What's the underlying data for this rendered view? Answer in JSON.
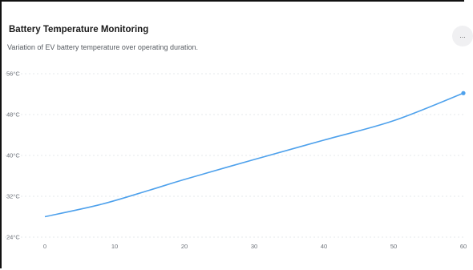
{
  "header": {
    "title": "Battery Temperature Monitoring",
    "subtitle": "Variation of EV battery temperature over operating duration.",
    "more_label": "..."
  },
  "chart_data": {
    "type": "line",
    "title": "Battery Temperature Monitoring",
    "subtitle": "Variation of EV battery temperature over operating duration.",
    "xlabel": "",
    "ylabel": "",
    "xlim": [
      0,
      60
    ],
    "ylim": [
      24,
      56
    ],
    "x_ticks": [
      "0",
      "10",
      "20",
      "30",
      "40",
      "50",
      "60"
    ],
    "y_ticks": [
      "24°C",
      "32°C",
      "40°C",
      "48°C",
      "56°C"
    ],
    "grid": "horizontal dashed",
    "series": [
      {
        "x": [
          0,
          8,
          15,
          20,
          30,
          40,
          50,
          60
        ],
        "y": [
          28,
          30.4,
          33.2,
          35.3,
          39.2,
          43,
          46.8,
          52.2
        ],
        "color": "#4ea1ec"
      }
    ]
  }
}
